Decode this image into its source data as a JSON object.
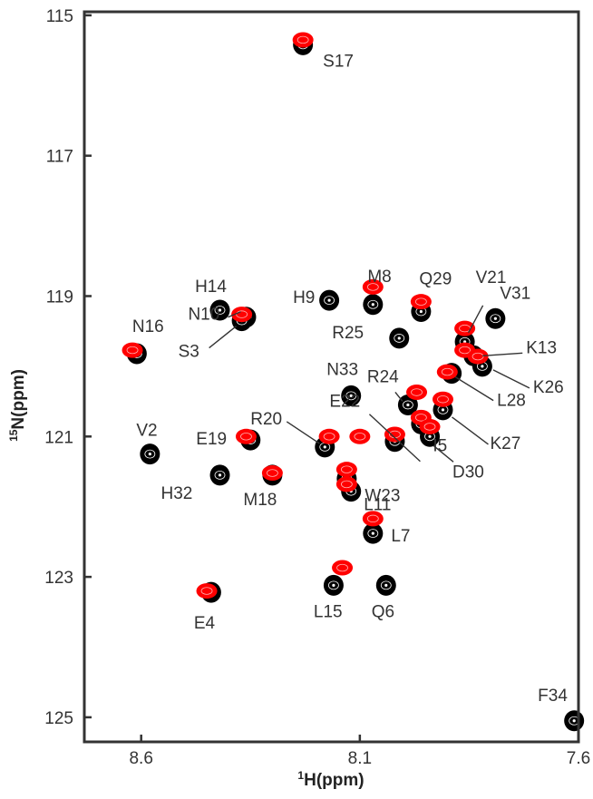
{
  "chart_data": {
    "type": "scatter",
    "title": "",
    "xlabel_sup": "1",
    "xlabel": "H(ppm)",
    "ylabel_sup": "15",
    "ylabel": "N(ppm)",
    "xlim": [
      8.73,
      7.6
    ],
    "ylim": [
      114.95,
      125.35
    ],
    "x_reversed": true,
    "y_reversed": true,
    "xticks": [
      8.6,
      8.1,
      7.6
    ],
    "xtick_labels": [
      "8.6",
      "8.1",
      "7.6"
    ],
    "yticks": [
      115,
      117,
      119,
      121,
      123,
      125
    ],
    "ytick_labels": [
      "115",
      "117",
      "119",
      "121",
      "123",
      "125"
    ],
    "grid": false,
    "series": [
      {
        "color": "#000000",
        "points": [
          {
            "label": "S17",
            "x": 8.23,
            "y": 115.42
          },
          {
            "label": "H14",
            "x": 8.42,
            "y": 119.2
          },
          {
            "label": "N10",
            "x": 8.36,
            "y": 119.3
          },
          {
            "label": "S3",
            "x": 8.37,
            "y": 119.35
          },
          {
            "label": "H9",
            "x": 8.17,
            "y": 119.06
          },
          {
            "label": "M8",
            "x": 8.07,
            "y": 119.12
          },
          {
            "label": "Q29",
            "x": 7.96,
            "y": 119.22
          },
          {
            "label": "N16",
            "x": 8.61,
            "y": 119.82
          },
          {
            "label": "R25",
            "x": 8.01,
            "y": 119.6
          },
          {
            "label": "V31",
            "x": 7.79,
            "y": 119.32
          },
          {
            "label": "V21",
            "x": 7.86,
            "y": 119.65
          },
          {
            "label": "K13",
            "x": 7.84,
            "y": 119.85
          },
          {
            "label": "K26",
            "x": 7.82,
            "y": 120.0
          },
          {
            "label": "L28",
            "x": 7.89,
            "y": 120.1
          },
          {
            "label": "N33",
            "x": 8.12,
            "y": 120.42
          },
          {
            "label": "R24",
            "x": 7.99,
            "y": 120.55
          },
          {
            "label": "E22",
            "x": 8.02,
            "y": 121.07
          },
          {
            "label": "I5",
            "x": 7.96,
            "y": 120.82
          },
          {
            "label": "D30",
            "x": 7.94,
            "y": 121.0
          },
          {
            "label": "K27",
            "x": 7.91,
            "y": 120.62
          },
          {
            "label": "R20",
            "x": 8.18,
            "y": 121.15
          },
          {
            "label": "V2",
            "x": 8.58,
            "y": 121.25
          },
          {
            "label": "E19",
            "x": 8.35,
            "y": 121.05
          },
          {
            "label": "H32",
            "x": 8.42,
            "y": 121.55
          },
          {
            "label": "M18",
            "x": 8.3,
            "y": 121.55
          },
          {
            "label": "W23",
            "x": 8.13,
            "y": 121.6
          },
          {
            "label": "L11",
            "x": 8.12,
            "y": 121.78
          },
          {
            "label": "L7",
            "x": 8.07,
            "y": 122.38
          },
          {
            "label": "E4",
            "x": 8.44,
            "y": 123.22
          },
          {
            "label": "L15",
            "x": 8.16,
            "y": 123.12
          },
          {
            "label": "Q6",
            "x": 8.04,
            "y": 123.12
          },
          {
            "label": "F34",
            "x": 7.61,
            "y": 125.05
          }
        ]
      },
      {
        "color": "#ff0000",
        "points": [
          {
            "x": 8.23,
            "y": 115.35
          },
          {
            "x": 8.07,
            "y": 118.87
          },
          {
            "x": 7.96,
            "y": 119.08
          },
          {
            "x": 8.37,
            "y": 119.26
          },
          {
            "x": 8.62,
            "y": 119.77
          },
          {
            "x": 7.86,
            "y": 119.46
          },
          {
            "x": 7.86,
            "y": 119.77
          },
          {
            "x": 7.83,
            "y": 119.86
          },
          {
            "x": 7.9,
            "y": 120.08
          },
          {
            "x": 7.97,
            "y": 120.37
          },
          {
            "x": 7.91,
            "y": 120.47
          },
          {
            "x": 7.96,
            "y": 120.73
          },
          {
            "x": 7.94,
            "y": 120.86
          },
          {
            "x": 8.02,
            "y": 120.97
          },
          {
            "x": 8.36,
            "y": 121.0
          },
          {
            "x": 8.17,
            "y": 121.0
          },
          {
            "x": 8.1,
            "y": 121.0
          },
          {
            "x": 8.3,
            "y": 121.52
          },
          {
            "x": 8.13,
            "y": 121.47
          },
          {
            "x": 8.13,
            "y": 121.68
          },
          {
            "x": 8.07,
            "y": 122.17
          },
          {
            "x": 8.14,
            "y": 122.87
          },
          {
            "x": 8.45,
            "y": 123.2
          }
        ]
      }
    ]
  }
}
